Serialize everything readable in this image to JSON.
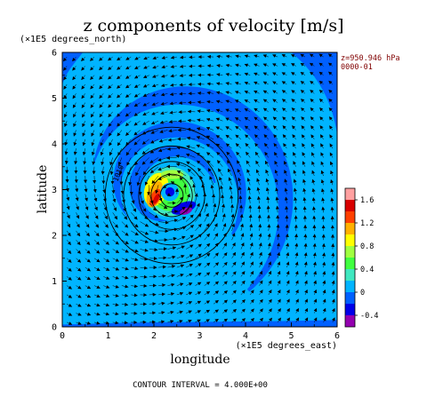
{
  "chart_data": {
    "type": "heatmap",
    "title": "z components of velocity [m/s]",
    "xlabel": "longitude",
    "ylabel": "latitude",
    "x_unit_label": "(×1E5 degrees_east)",
    "y_unit_label": "(×1E5 degrees_north)",
    "xlim": [
      0,
      6
    ],
    "ylim": [
      0,
      6
    ],
    "x_ticks": [
      "0",
      "1",
      "2",
      "3",
      "4",
      "5",
      "6"
    ],
    "y_ticks": [
      "0",
      "1",
      "2",
      "3",
      "4",
      "5",
      "6"
    ],
    "annotation_level": "z=950.946 hPa",
    "annotation_time": "0000-01",
    "contour_interval_text": "CONTOUR INTERVAL = 4.000E+00",
    "contour_label": "1010",
    "colorbar": {
      "tick_labels": [
        "1.6",
        "1.2",
        "0.8",
        "0.4",
        "0",
        "-0.4"
      ],
      "tick_values": [
        1.6,
        1.2,
        0.8,
        0.4,
        0,
        -0.4
      ],
      "levels": [
        -0.6,
        -0.4,
        -0.2,
        0,
        0.2,
        0.4,
        0.6,
        0.8,
        1.0,
        1.2,
        1.4,
        1.6,
        1.8
      ],
      "colors": [
        "#9400b0",
        "#0000e8",
        "#0060ff",
        "#00b4ff",
        "#40e8c0",
        "#40ff40",
        "#a0ff40",
        "#ffff00",
        "#ffb000",
        "#ff4000",
        "#d80000",
        "#ffa0a0"
      ]
    },
    "field": {
      "background_color": "#00b4ff",
      "outer_region_color": "#40e8c0",
      "band_color": "#0060ff",
      "center_x": 2.35,
      "center_y": 2.95,
      "spiral_bands": 3,
      "eye_value": -0.2,
      "max_updraft": 1.6,
      "max_downdraft": -0.5,
      "grid": "none"
    },
    "vectors": "wind arrows on a regular grid, cyclonic rotation about the center"
  }
}
